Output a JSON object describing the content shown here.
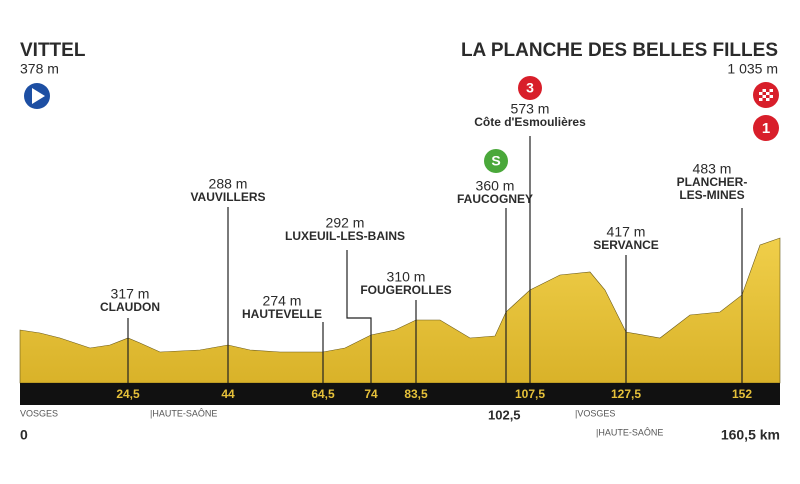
{
  "start": {
    "name": "VITTEL",
    "altitude": "378 m"
  },
  "finish": {
    "name": "LA PLANCHE DES BELLES FILLES",
    "altitude": "1 035 m",
    "badge": "1"
  },
  "points": [
    {
      "altitude": "317 m",
      "name": [
        "CLAUDON"
      ],
      "km": "24,5"
    },
    {
      "altitude": "288 m",
      "name": [
        "VAUVILLERS"
      ],
      "km": "44"
    },
    {
      "altitude": "274 m",
      "name": [
        "HAUTEVELLE"
      ],
      "km": "64,5"
    },
    {
      "altitude": "292 m",
      "name": [
        "LUXEUIL-LES-BAINS"
      ],
      "km": "74"
    },
    {
      "altitude": "310 m",
      "name": [
        "FOUGEROLLES"
      ],
      "km": "83,5"
    },
    {
      "altitude": "360 m",
      "name": [
        "FAUCOGNEY"
      ],
      "km": "102,5",
      "badge": "S"
    },
    {
      "altitude": "573 m",
      "name": [
        "Côte d'Esmoulières"
      ],
      "km": "107,5",
      "badge": "3"
    },
    {
      "altitude": "417 m",
      "name": [
        "SERVANCE"
      ],
      "km": "127,5"
    },
    {
      "altitude": "483 m",
      "name": [
        "PLANCHER-",
        "LES-MINES"
      ],
      "km": "152"
    }
  ],
  "regions": [
    "VOSGES",
    "|HAUTE-SAÔNE",
    "|VOSGES",
    "|HAUTE-SAÔNE"
  ],
  "distance": {
    "start": "0",
    "end": "160,5 km"
  }
}
